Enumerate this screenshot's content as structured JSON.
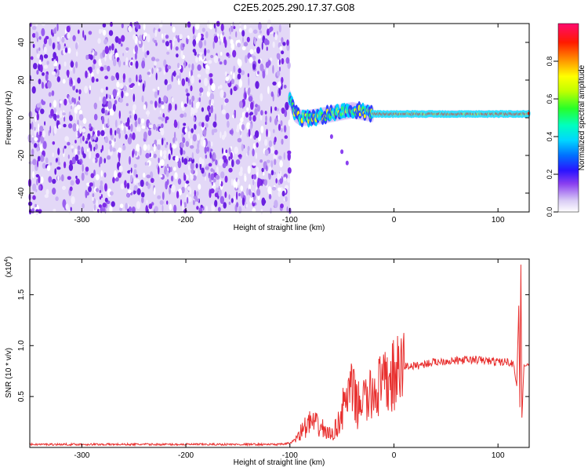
{
  "title": "C2E5.2025.290.17.37.G08",
  "colorbar": {
    "label": "Normalized spectral amplitude",
    "ticks": [
      "0.0",
      "0.2",
      "0.4",
      "0.6",
      "0.8"
    ],
    "tick_values": [
      0,
      0.2,
      0.4,
      0.6,
      0.8
    ],
    "range": [
      0,
      1
    ]
  },
  "chart_data": [
    {
      "type": "heatmap",
      "xlabel": "Height of straight line (km)",
      "ylabel": "Frequency (Hz)",
      "xlim": [
        -350,
        130
      ],
      "ylim": [
        -50,
        50
      ],
      "xticks": [
        -300,
        -200,
        -100,
        0,
        100
      ],
      "xtick_labels": [
        "-300",
        "-200",
        "-100",
        "0",
        "100"
      ],
      "yticks": [
        -40,
        -20,
        0,
        20,
        40
      ],
      "ytick_labels": [
        "-40",
        "-20",
        "0",
        "20",
        "40"
      ],
      "noise_region_x": [
        -350,
        -100
      ],
      "signal_track": [
        {
          "x": -100,
          "f": 10
        },
        {
          "x": -97,
          "f": 5
        },
        {
          "x": -95,
          "f": 2
        },
        {
          "x": -90,
          "f": 0
        },
        {
          "x": -80,
          "f": 0
        },
        {
          "x": -70,
          "f": 1
        },
        {
          "x": -60,
          "f": 2
        },
        {
          "x": -50,
          "f": 3
        },
        {
          "x": -40,
          "f": 4
        },
        {
          "x": -30,
          "f": 3
        },
        {
          "x": -20,
          "f": 2
        },
        {
          "x": 0,
          "f": 2
        },
        {
          "x": 30,
          "f": 2
        },
        {
          "x": 60,
          "f": 2
        },
        {
          "x": 90,
          "f": 2
        },
        {
          "x": 120,
          "f": 2
        },
        {
          "x": 130,
          "f": 2
        }
      ],
      "branch_track": [
        {
          "x": -60,
          "f": -10
        },
        {
          "x": -50,
          "f": -18
        },
        {
          "x": -45,
          "f": -24
        }
      ]
    },
    {
      "type": "line",
      "xlabel": "Height of straight line (km)",
      "ylabel": "SNR (10 * v/v)",
      "y_multiplier": "(x10",
      "y_multiplier_exp": "4",
      "xlim": [
        -350,
        130
      ],
      "ylim": [
        0,
        1.85
      ],
      "xticks": [
        -300,
        -200,
        -100,
        0,
        100
      ],
      "xtick_labels": [
        "-300",
        "-200",
        "-100",
        "0",
        "100"
      ],
      "yticks": [
        0.5,
        1.0,
        1.5
      ],
      "ytick_labels": [
        "0.5",
        "1.0",
        "1.5"
      ],
      "series": [
        {
          "color": "#e8302f",
          "points": [
            [
              -350,
              0.03
            ],
            [
              -300,
              0.03
            ],
            [
              -250,
              0.03
            ],
            [
              -200,
              0.03
            ],
            [
              -150,
              0.03
            ],
            [
              -110,
              0.03
            ],
            [
              -100,
              0.04
            ],
            [
              -95,
              0.08
            ],
            [
              -90,
              0.15
            ],
            [
              -85,
              0.2
            ],
            [
              -80,
              0.25
            ],
            [
              -75,
              0.22
            ],
            [
              -70,
              0.2
            ],
            [
              -65,
              0.15
            ],
            [
              -60,
              0.12
            ],
            [
              -55,
              0.2
            ],
            [
              -50,
              0.35
            ],
            [
              -45,
              0.5
            ],
            [
              -40,
              0.55
            ],
            [
              -35,
              0.4
            ],
            [
              -30,
              0.5
            ],
            [
              -25,
              0.45
            ],
            [
              -20,
              0.55
            ],
            [
              -15,
              0.6
            ],
            [
              -10,
              0.6
            ],
            [
              -5,
              0.65
            ],
            [
              0,
              0.7
            ],
            [
              5,
              0.72
            ],
            [
              10,
              0.8
            ],
            [
              20,
              0.8
            ],
            [
              30,
              0.82
            ],
            [
              40,
              0.84
            ],
            [
              50,
              0.85
            ],
            [
              60,
              0.85
            ],
            [
              70,
              0.86
            ],
            [
              80,
              0.86
            ],
            [
              90,
              0.85
            ],
            [
              100,
              0.84
            ],
            [
              110,
              0.84
            ],
            [
              115,
              0.82
            ],
            [
              118,
              0.6
            ],
            [
              120,
              1.4
            ],
            [
              121,
              0.4
            ],
            [
              122,
              1.8
            ],
            [
              123,
              0.3
            ],
            [
              125,
              0.8
            ],
            [
              130,
              0.82
            ]
          ]
        }
      ]
    }
  ]
}
